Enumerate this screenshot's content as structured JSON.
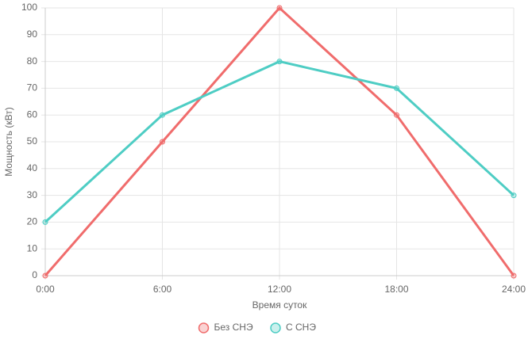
{
  "chart_data": {
    "type": "line",
    "x_label": "Время суток",
    "y_label": "Мощность (кВт)",
    "categories": [
      "0:00",
      "6:00",
      "12:00",
      "18:00",
      "24:00"
    ],
    "series": [
      {
        "name": "Без СНЭ",
        "color": "#f06c6c",
        "values": [
          0,
          50,
          100,
          60,
          0
        ]
      },
      {
        "name": "С СНЭ",
        "color": "#4ecdc4",
        "values": [
          20,
          60,
          80,
          70,
          30
        ]
      }
    ],
    "ylim": [
      0,
      100
    ],
    "yticks": [
      0,
      10,
      20,
      30,
      40,
      50,
      60,
      70,
      80,
      90,
      100
    ],
    "grid": true,
    "legend": "bottom"
  }
}
